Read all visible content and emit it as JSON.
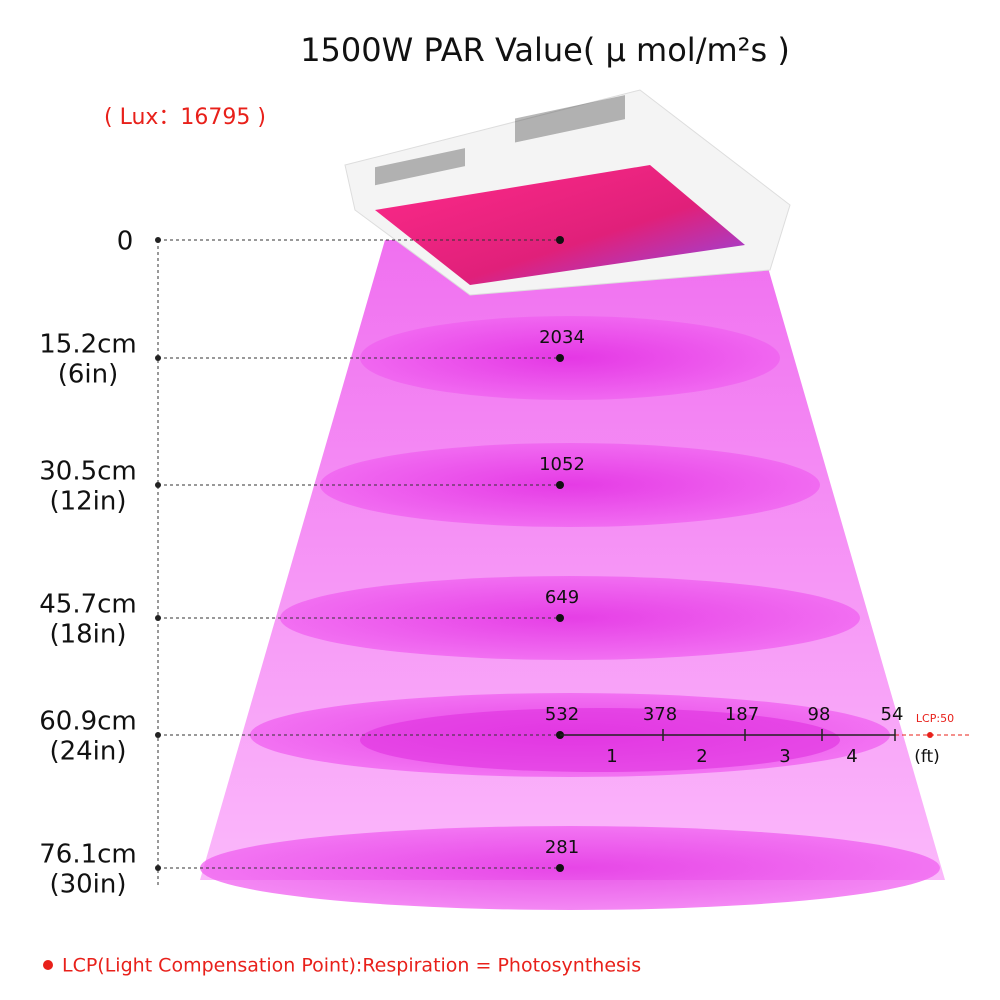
{
  "title": "1500W PAR Value( μ mol/m²s )",
  "lux": "( Lux：16795 )",
  "levels": [
    {
      "cm": "0"
    },
    {
      "cm": "15.2cm",
      "in": "(6in)",
      "par": 2034
    },
    {
      "cm": "30.5cm",
      "in": "(12in)",
      "par": 1052
    },
    {
      "cm": "45.7cm",
      "in": "(18in)",
      "par": 649
    },
    {
      "cm": "60.9cm",
      "in": "(24in)",
      "par": 532
    },
    {
      "cm": "76.1cm",
      "in": "(30in)",
      "par": 281
    }
  ],
  "spread": {
    "values": [
      378,
      187,
      98,
      54
    ],
    "feet": [
      1,
      2,
      3,
      4
    ],
    "unit": "(ft)",
    "lcp": "LCP:50"
  },
  "footer": "LCP(Light Compensation Point):Respiration = Photosynthesis"
}
